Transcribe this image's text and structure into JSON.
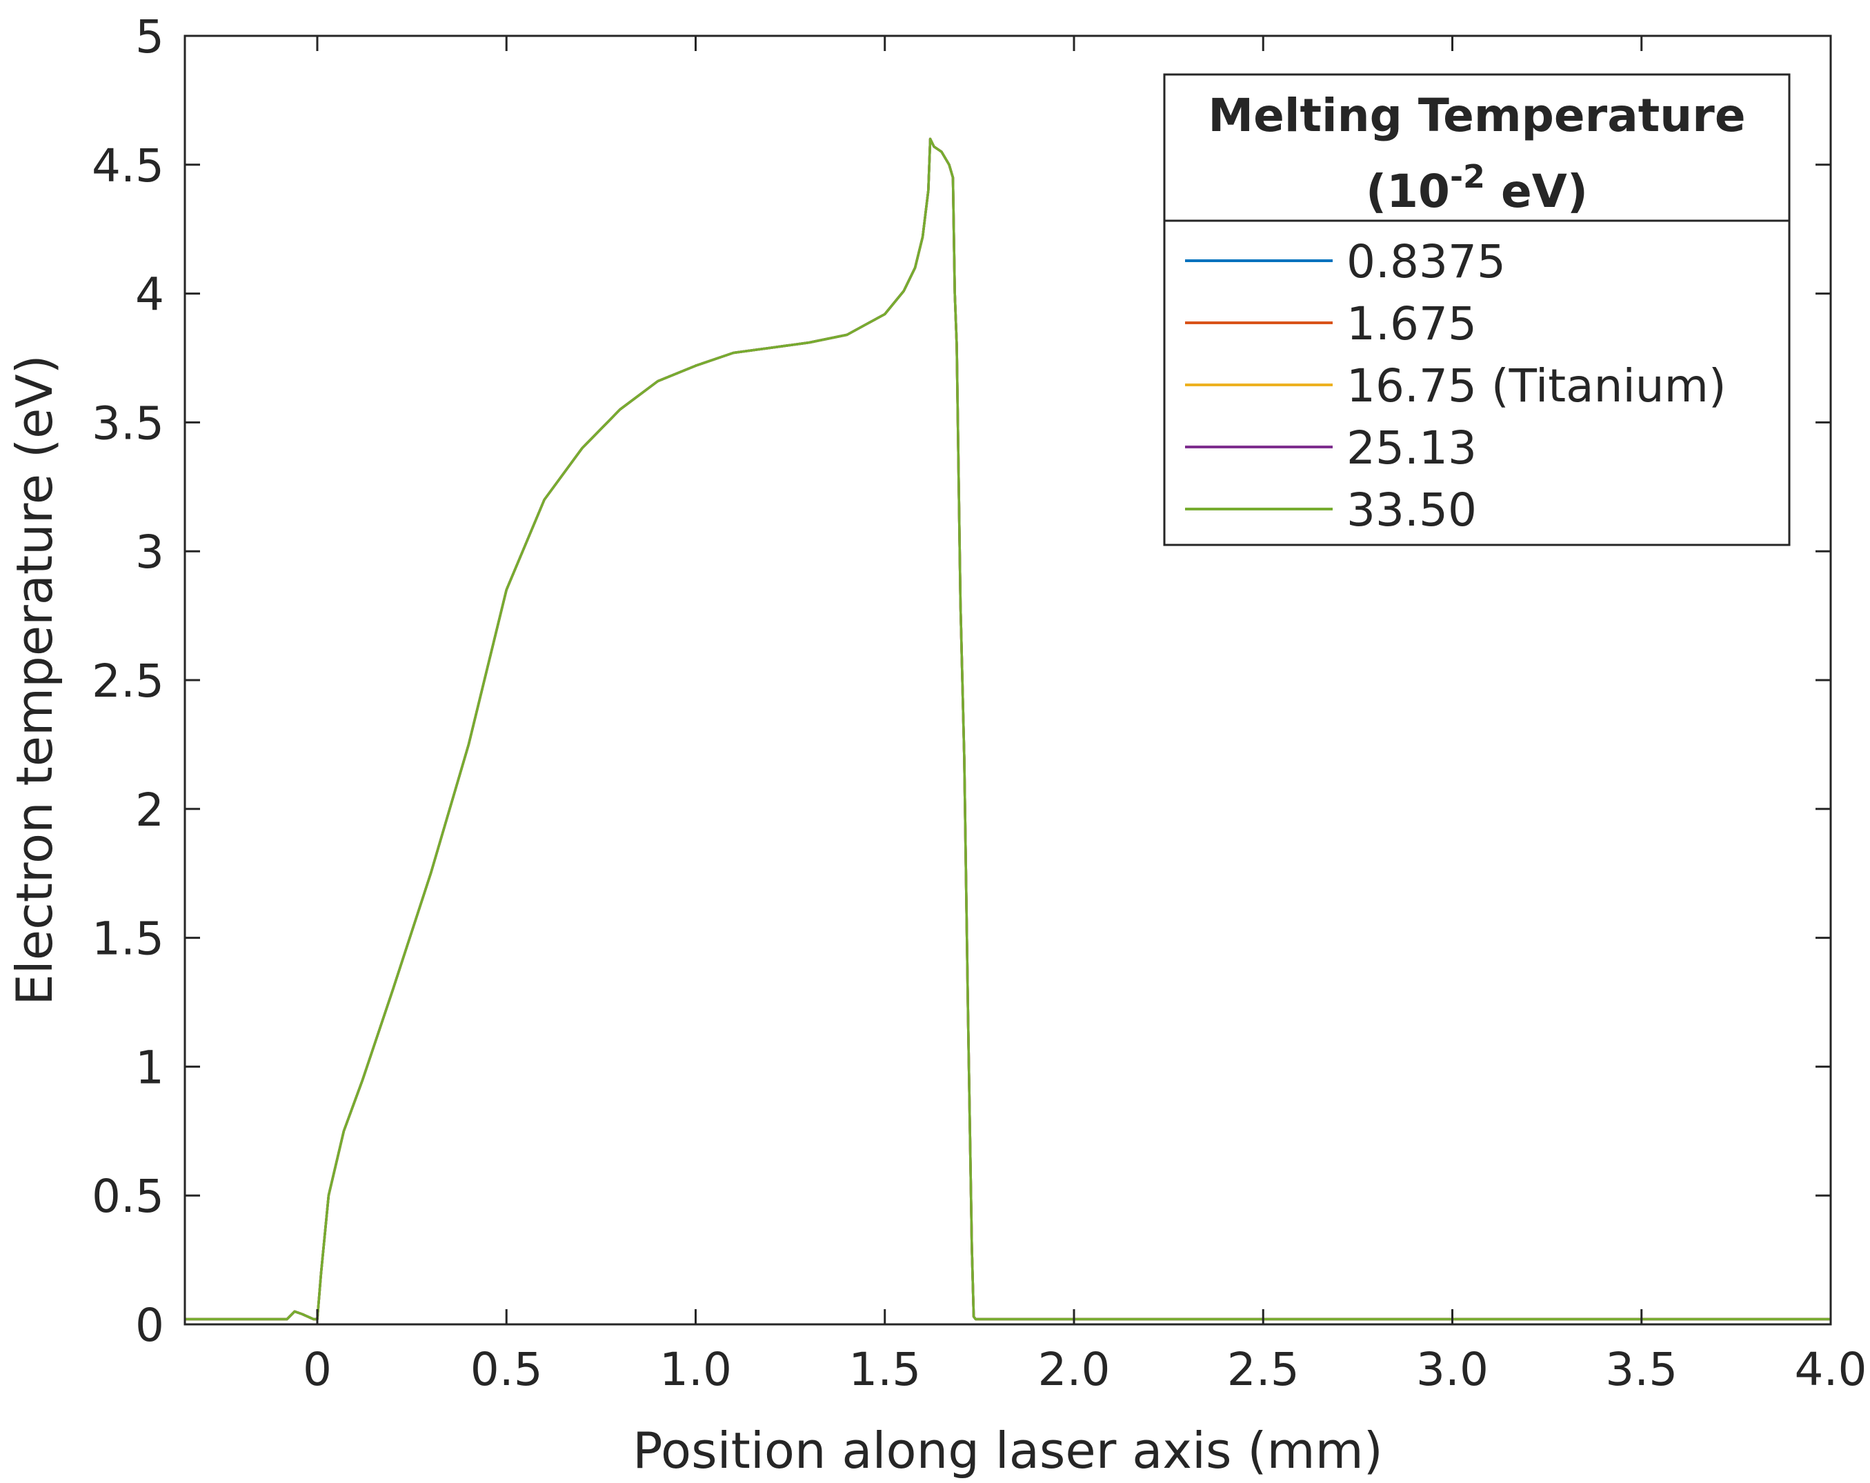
{
  "chart_data": {
    "type": "line",
    "title": "",
    "xlabel": "Position along laser axis (mm)",
    "ylabel": "Electron temperature (eV)",
    "xlim": [
      -0.35,
      4.0
    ],
    "ylim": [
      0,
      5
    ],
    "xticks": [
      0,
      0.5,
      1.0,
      1.5,
      2.0,
      2.5,
      3.0,
      3.5,
      4.0
    ],
    "xtick_labels": [
      "0",
      "0.5",
      "1.0",
      "1.5",
      "2.0",
      "2.5",
      "3.0",
      "3.5",
      "4.0"
    ],
    "yticks": [
      0,
      0.5,
      1,
      1.5,
      2,
      2.5,
      3,
      3.5,
      4,
      4.5,
      5
    ],
    "ytick_labels": [
      "0",
      "0.5",
      "1",
      "1.5",
      "2",
      "2.5",
      "3",
      "3.5",
      "4",
      "4.5",
      "5"
    ],
    "grid": false,
    "legend": {
      "title_line1": "Melting Temperature",
      "title_line2_base": "(10",
      "title_line2_exp": "-2",
      "title_line2_rest": " eV)",
      "placement": "top-right"
    },
    "x": [
      -0.35,
      -0.08,
      -0.06,
      -0.04,
      -0.01,
      0.0,
      0.01,
      0.03,
      0.07,
      0.12,
      0.2,
      0.3,
      0.4,
      0.5,
      0.6,
      0.7,
      0.8,
      0.9,
      1.0,
      1.1,
      1.2,
      1.3,
      1.4,
      1.45,
      1.5,
      1.55,
      1.58,
      1.6,
      1.615,
      1.62,
      1.63,
      1.65,
      1.67,
      1.68,
      1.685,
      1.69,
      1.7,
      1.71,
      1.72,
      1.73,
      1.735,
      1.74,
      1.75,
      2.0,
      2.5,
      3.0,
      3.5,
      4.0
    ],
    "series": [
      {
        "name": "0.8375",
        "color": "#0072BD",
        "y": [
          0.02,
          0.02,
          0.05,
          0.04,
          0.02,
          0.02,
          0.2,
          0.5,
          0.75,
          0.95,
          1.3,
          1.75,
          2.25,
          2.85,
          3.2,
          3.4,
          3.55,
          3.66,
          3.72,
          3.77,
          3.79,
          3.81,
          3.84,
          3.88,
          3.92,
          4.01,
          4.1,
          4.22,
          4.4,
          4.6,
          4.57,
          4.55,
          4.5,
          4.45,
          4.0,
          3.8,
          2.8,
          2.2,
          1.2,
          0.3,
          0.03,
          0.02,
          0.02,
          0.02,
          0.02,
          0.02,
          0.02,
          0.02
        ]
      },
      {
        "name": "1.675",
        "color": "#D95319",
        "y": [
          0.02,
          0.02,
          0.05,
          0.04,
          0.02,
          0.02,
          0.2,
          0.5,
          0.75,
          0.95,
          1.3,
          1.75,
          2.25,
          2.85,
          3.2,
          3.4,
          3.55,
          3.66,
          3.72,
          3.77,
          3.79,
          3.81,
          3.84,
          3.88,
          3.92,
          4.01,
          4.1,
          4.22,
          4.4,
          4.6,
          4.57,
          4.55,
          4.5,
          4.45,
          4.0,
          3.8,
          2.8,
          2.2,
          1.2,
          0.3,
          0.03,
          0.02,
          0.02,
          0.02,
          0.02,
          0.02,
          0.02,
          0.02
        ]
      },
      {
        "name": "16.75 (Titanium)",
        "color": "#EDB120",
        "y": [
          0.02,
          0.02,
          0.05,
          0.04,
          0.02,
          0.02,
          0.2,
          0.5,
          0.75,
          0.95,
          1.3,
          1.75,
          2.25,
          2.85,
          3.2,
          3.4,
          3.55,
          3.66,
          3.72,
          3.77,
          3.79,
          3.81,
          3.84,
          3.88,
          3.92,
          4.01,
          4.1,
          4.22,
          4.4,
          4.6,
          4.57,
          4.55,
          4.5,
          4.45,
          4.0,
          3.8,
          2.8,
          2.2,
          1.2,
          0.3,
          0.03,
          0.02,
          0.02,
          0.02,
          0.02,
          0.02,
          0.02,
          0.02
        ]
      },
      {
        "name": "25.13",
        "color": "#7E2F8E",
        "y": [
          0.02,
          0.02,
          0.05,
          0.04,
          0.02,
          0.02,
          0.2,
          0.5,
          0.75,
          0.95,
          1.3,
          1.75,
          2.25,
          2.85,
          3.2,
          3.4,
          3.55,
          3.66,
          3.72,
          3.77,
          3.79,
          3.81,
          3.84,
          3.88,
          3.92,
          4.01,
          4.1,
          4.22,
          4.4,
          4.6,
          4.57,
          4.55,
          4.5,
          4.45,
          4.0,
          3.8,
          2.8,
          2.2,
          1.2,
          0.3,
          0.03,
          0.02,
          0.02,
          0.02,
          0.02,
          0.02,
          0.02,
          0.02
        ]
      },
      {
        "name": "33.50",
        "color": "#77AC30",
        "y": [
          0.02,
          0.02,
          0.05,
          0.04,
          0.02,
          0.02,
          0.2,
          0.5,
          0.75,
          0.95,
          1.3,
          1.75,
          2.25,
          2.85,
          3.2,
          3.4,
          3.55,
          3.66,
          3.72,
          3.77,
          3.79,
          3.81,
          3.84,
          3.88,
          3.92,
          4.01,
          4.1,
          4.22,
          4.4,
          4.6,
          4.57,
          4.55,
          4.5,
          4.45,
          4.0,
          3.8,
          2.8,
          2.2,
          1.2,
          0.3,
          0.03,
          0.02,
          0.02,
          0.02,
          0.02,
          0.02,
          0.02,
          0.02
        ]
      }
    ]
  }
}
